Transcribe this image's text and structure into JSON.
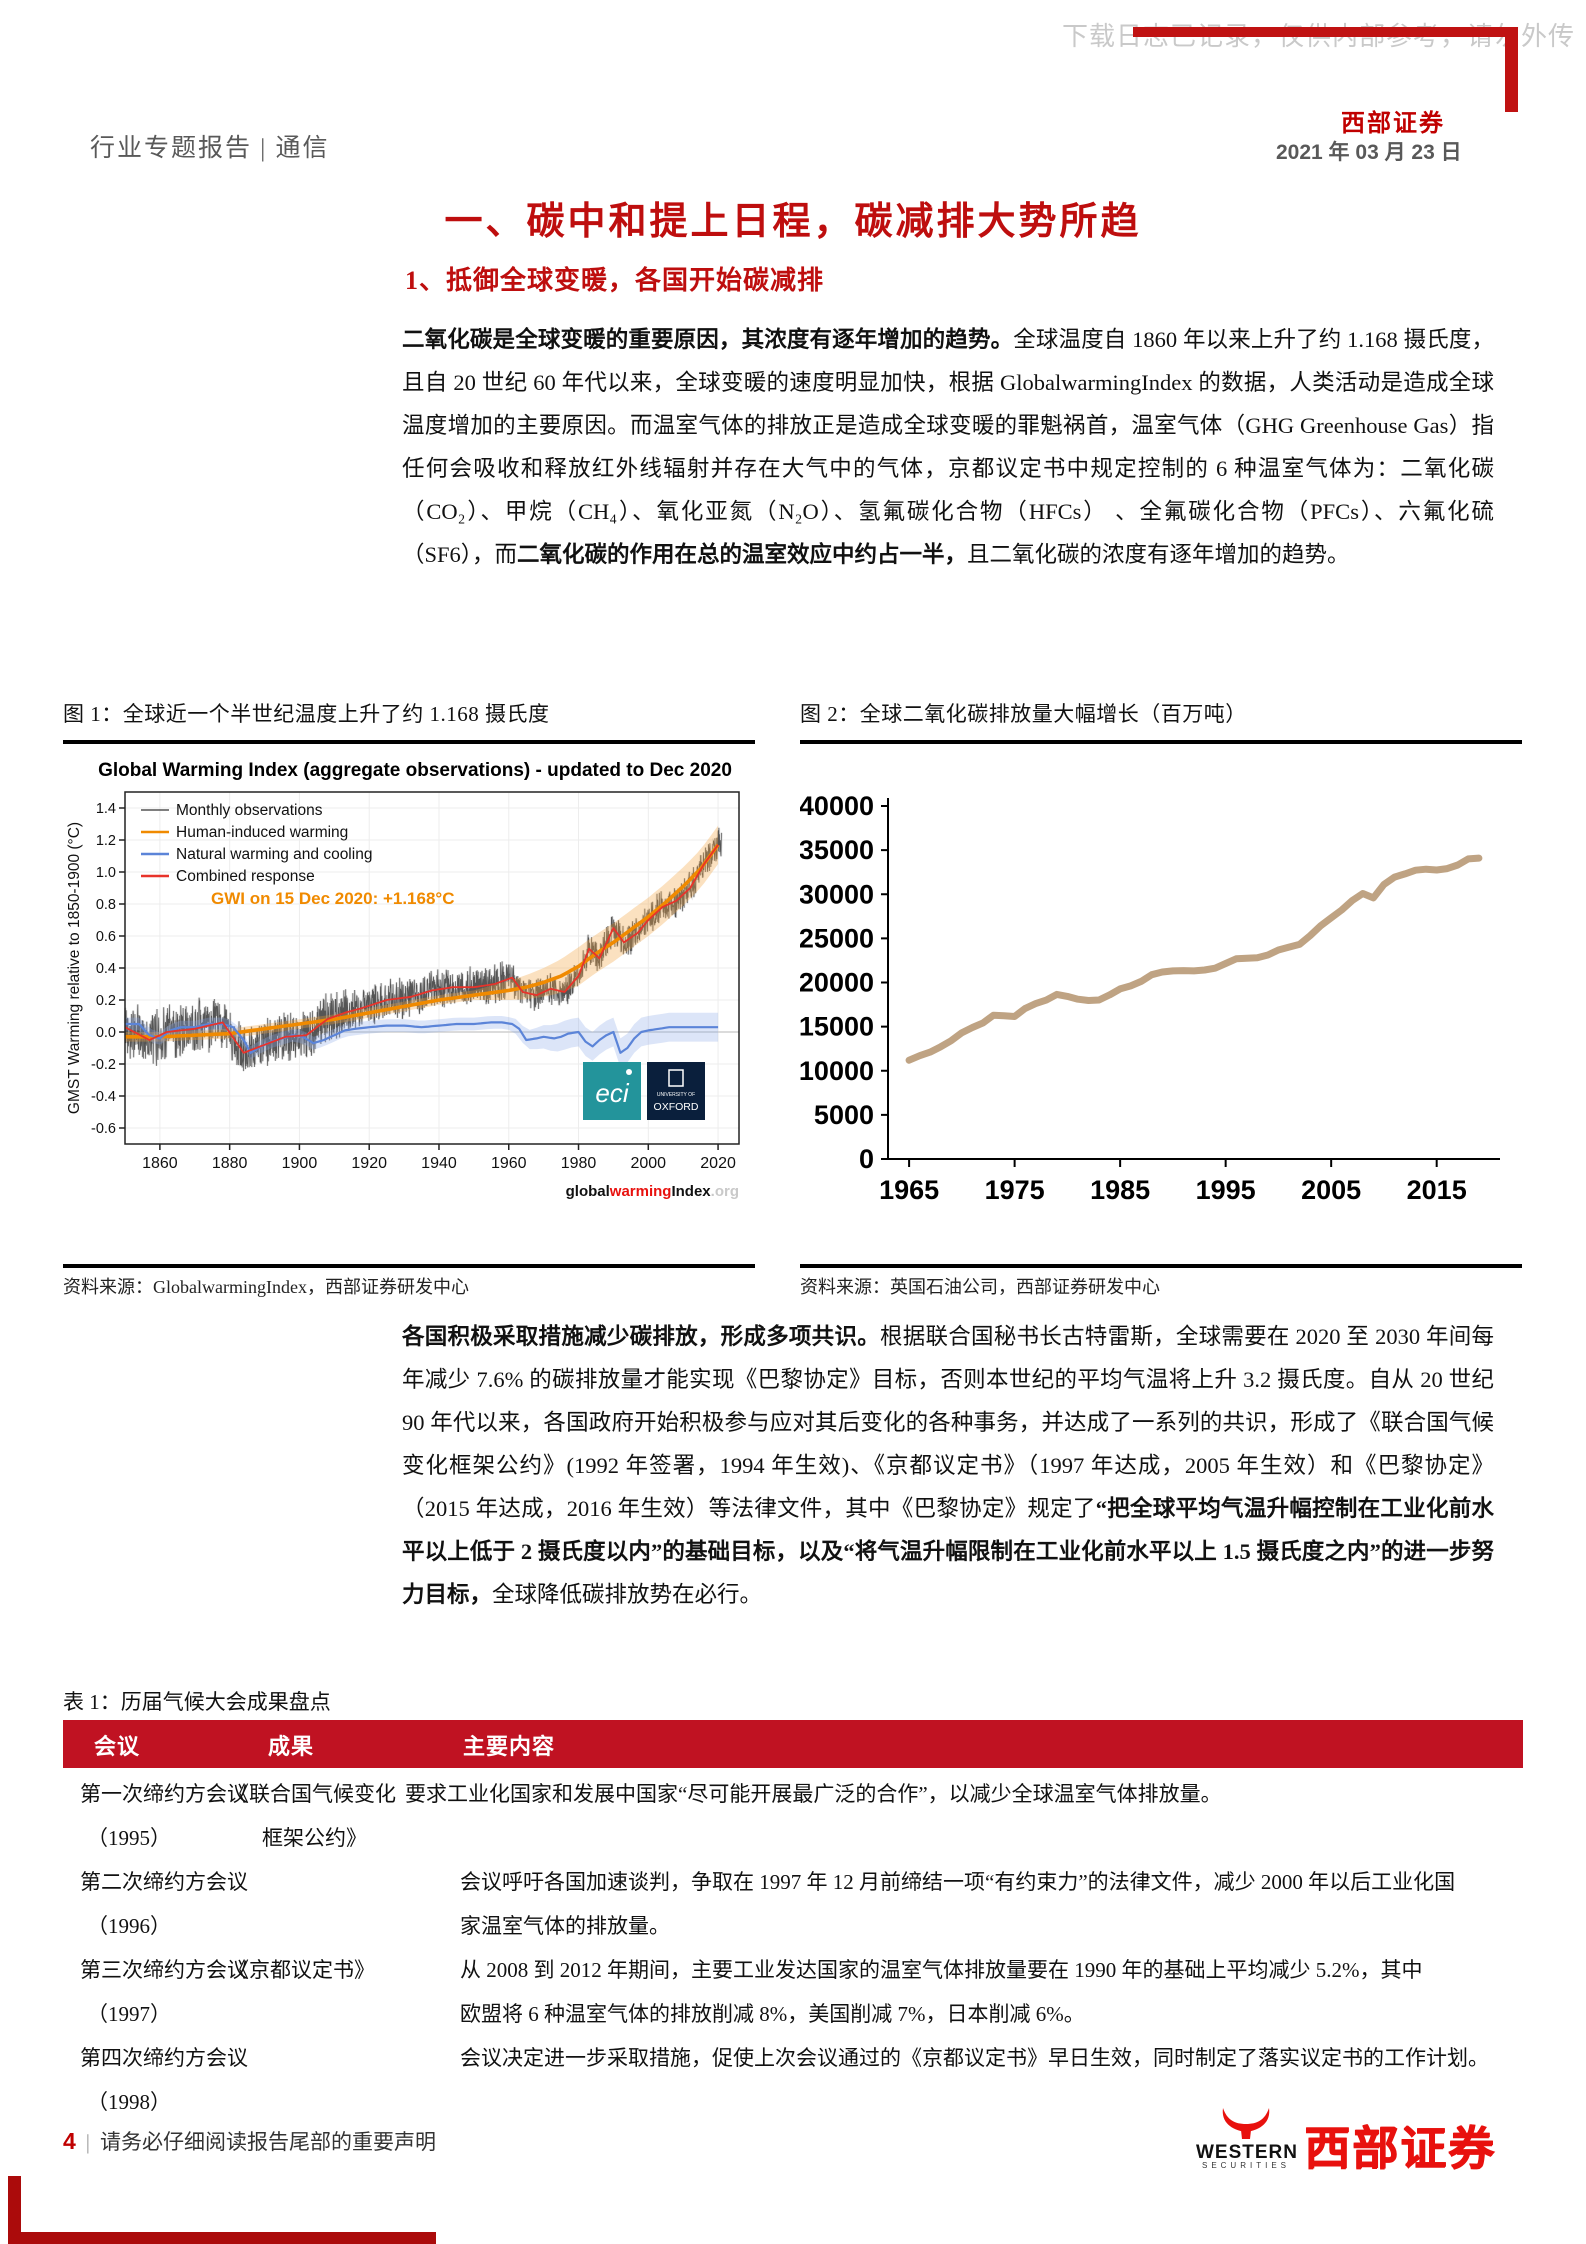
{
  "header": {
    "watermark": "下载日志已记录，仅供内部参考，请勿外传",
    "brand": "西部证券",
    "date": "2021 年 03 月 23 日",
    "doc_type": "行业专题报告 | 通信"
  },
  "headings": {
    "h1": "一、碳中和提上日程，碳减排大势所趋",
    "h2": "1、抵御全球变暖，各国开始碳减排"
  },
  "paragraphs": {
    "p1": [
      {
        "b": 1,
        "t": "二氧化碳是全球变暖的重要原因，其浓度有逐年增加的趋势。"
      },
      {
        "b": 0,
        "t": "全球温度自 1860 年以来上升了约 1.168 摄氏度，且自 20 世纪 60 年代以来，全球变暖的速度明显加快，根据 GlobalwarmingIndex 的数据，人类活动是造成全球温度增加的主要原因。而温室气体的排放正是造成全球变暖的罪魁祸首，温室气体（GHG Greenhouse Gas）指任何会吸收和释放红外线辐射并存在大气中的气体，京都议定书中规定控制的 6 种温室气体为：二氧化碳（CO₂）、甲烷（CH₄）、氧化亚氮（N₂O）、氢氟碳化合物（HFCs） 、全氟碳化合物（PFCs）、六氟化硫（SF6），而"
      },
      {
        "b": 1,
        "t": "二氧化碳的作用在总的温室效应中约占一半，"
      },
      {
        "b": 0,
        "t": "且二氧化碳的浓度有逐年增加的趋势。"
      }
    ],
    "p2": [
      {
        "b": 1,
        "t": "各国积极采取措施减少碳排放，形成多项共识。"
      },
      {
        "b": 0,
        "t": "根据联合国秘书长古特雷斯，全球需要在 2020 至 2030 年间每年减少 7.6% 的碳排放量才能实现《巴黎协定》目标，否则本世纪的平均气温将上升 3.2 摄氏度。自从 20 世纪 90 年代以来，各国政府开始积极参与应对其后变化的各种事务，并达成了一系列的共识，形成了《联合国气候变化框架公约》(1992 年签署，1994 年生效)、《京都议定书》（1997 年达成，2005 年生效）和《巴黎协定》（2015 年达成，2016 年生效）等法律文件，其中《巴黎协定》规定了"
      },
      {
        "b": 1,
        "t": "“把全球平均气温升幅控制在工业化前水平以上低于 2 摄氏度以内”的基础目标，以及“将气温升幅限制在工业化前水平以上 1.5 摄氏度之内”的进一步努力目标，"
      },
      {
        "b": 0,
        "t": "全球降低碳排放势在必行。"
      }
    ]
  },
  "figures": {
    "fig1_caption": "图 1：全球近一个半世纪温度上升了约 1.168 摄氏度",
    "fig1_source": "资料来源：GlobalwarmingIndex，西部证券研发中心",
    "fig2_caption": "图 2：全球二氧化碳排放量大幅增长（百万吨）",
    "fig2_source": "资料来源：英国石油公司，西部证券研发中心"
  },
  "chart_data": [
    {
      "type": "line",
      "title": "Global Warming Index (aggregate observations) - updated to Dec 2020",
      "ylabel": "GMST Warming relative to 1850-1900 (°C)",
      "annotation": "GWI on 15 Dec 2020: +1.168°C",
      "xlim": [
        1850,
        2026
      ],
      "ylim": [
        -0.7,
        1.5
      ],
      "yticks": [
        -0.6,
        -0.4,
        -0.2,
        0.0,
        0.2,
        0.4,
        0.6,
        0.8,
        1.0,
        1.2,
        1.4
      ],
      "xticks": [
        1860,
        1880,
        1900,
        1920,
        1940,
        1960,
        1980,
        2000,
        2020
      ],
      "legend": [
        "Monthly observations",
        "Human-induced warming",
        "Natural warming and cooling",
        "Combined response"
      ],
      "legend_colors": [
        "#555555",
        "#f08a00",
        "#5b84d8",
        "#e8332a"
      ],
      "series": [
        {
          "name": "Human-induced warming",
          "color": "#f08a00",
          "band_color": "#f2a23c",
          "points": [
            [
              1850,
              -0.03
            ],
            [
              1860,
              -0.03
            ],
            [
              1870,
              -0.02
            ],
            [
              1880,
              -0.01
            ],
            [
              1890,
              0.02
            ],
            [
              1900,
              0.05
            ],
            [
              1910,
              0.08
            ],
            [
              1920,
              0.12
            ],
            [
              1930,
              0.16
            ],
            [
              1940,
              0.2
            ],
            [
              1950,
              0.23
            ],
            [
              1960,
              0.26
            ],
            [
              1965,
              0.28
            ],
            [
              1970,
              0.31
            ],
            [
              1975,
              0.35
            ],
            [
              1980,
              0.41
            ],
            [
              1985,
              0.49
            ],
            [
              1990,
              0.56
            ],
            [
              1995,
              0.64
            ],
            [
              2000,
              0.72
            ],
            [
              2005,
              0.81
            ],
            [
              2010,
              0.91
            ],
            [
              2015,
              1.02
            ],
            [
              2020,
              1.17
            ]
          ]
        },
        {
          "name": "Natural warming and cooling",
          "color": "#5b84d8",
          "band_color": "#8aa8e8",
          "points": [
            [
              1850,
              0.05
            ],
            [
              1854,
              0.05
            ],
            [
              1857,
              -0.02
            ],
            [
              1860,
              -0.04
            ],
            [
              1863,
              0.01
            ],
            [
              1866,
              0.03
            ],
            [
              1870,
              0.03
            ],
            [
              1874,
              0.05
            ],
            [
              1878,
              0.05
            ],
            [
              1881,
              0.03
            ],
            [
              1884,
              -0.05
            ],
            [
              1886,
              -0.13
            ],
            [
              1889,
              -0.09
            ],
            [
              1892,
              -0.06
            ],
            [
              1895,
              -0.04
            ],
            [
              1898,
              -0.02
            ],
            [
              1901,
              -0.03
            ],
            [
              1904,
              -0.07
            ],
            [
              1907,
              -0.05
            ],
            [
              1910,
              -0.02
            ],
            [
              1913,
              0.01
            ],
            [
              1916,
              0.02
            ],
            [
              1920,
              0.03
            ],
            [
              1925,
              0.04
            ],
            [
              1930,
              0.04
            ],
            [
              1935,
              0.03
            ],
            [
              1940,
              0.04
            ],
            [
              1945,
              0.05
            ],
            [
              1950,
              0.05
            ],
            [
              1955,
              0.06
            ],
            [
              1958,
              0.06
            ],
            [
              1961,
              0.05
            ],
            [
              1963,
              0.02
            ],
            [
              1965,
              -0.05
            ],
            [
              1968,
              -0.04
            ],
            [
              1970,
              -0.03
            ],
            [
              1973,
              -0.04
            ],
            [
              1975,
              -0.03
            ],
            [
              1977,
              -0.01
            ],
            [
              1980,
              0.0
            ],
            [
              1982,
              -0.06
            ],
            [
              1984,
              -0.09
            ],
            [
              1986,
              -0.05
            ],
            [
              1988,
              -0.02
            ],
            [
              1990,
              0.0
            ],
            [
              1992,
              -0.13
            ],
            [
              1994,
              -0.1
            ],
            [
              1996,
              -0.04
            ],
            [
              1998,
              0.0
            ],
            [
              2000,
              0.01
            ],
            [
              2003,
              0.02
            ],
            [
              2006,
              0.03
            ],
            [
              2010,
              0.03
            ],
            [
              2014,
              0.03
            ],
            [
              2017,
              0.03
            ],
            [
              2020,
              0.03
            ]
          ]
        },
        {
          "name": "Combined response",
          "color": "#e8332a",
          "points": [
            [
              1850,
              0.03
            ],
            [
              1857,
              -0.05
            ],
            [
              1862,
              0.0
            ],
            [
              1870,
              0.02
            ],
            [
              1878,
              0.06
            ],
            [
              1884,
              -0.13
            ],
            [
              1890,
              -0.08
            ],
            [
              1896,
              -0.03
            ],
            [
              1902,
              -0.02
            ],
            [
              1908,
              0.08
            ],
            [
              1913,
              0.12
            ],
            [
              1918,
              0.15
            ],
            [
              1925,
              0.2
            ],
            [
              1932,
              0.22
            ],
            [
              1938,
              0.26
            ],
            [
              1944,
              0.28
            ],
            [
              1950,
              0.28
            ],
            [
              1956,
              0.3
            ],
            [
              1961,
              0.34
            ],
            [
              1964,
              0.25
            ],
            [
              1968,
              0.23
            ],
            [
              1972,
              0.27
            ],
            [
              1976,
              0.25
            ],
            [
              1980,
              0.35
            ],
            [
              1983,
              0.52
            ],
            [
              1986,
              0.46
            ],
            [
              1990,
              0.65
            ],
            [
              1993,
              0.56
            ],
            [
              1997,
              0.62
            ],
            [
              2000,
              0.7
            ],
            [
              2004,
              0.78
            ],
            [
              2008,
              0.82
            ],
            [
              2012,
              0.9
            ],
            [
              2016,
              1.05
            ],
            [
              2020,
              1.17
            ]
          ]
        },
        {
          "name": "Monthly observations",
          "color": "#4d4d4d",
          "derived": "combined_plus_noise",
          "noise": 0.12
        }
      ],
      "logos": [
        "eci",
        "OXFORD"
      ],
      "brand": {
        "global": "global",
        "warming": "warming",
        "index": "Index",
        "org": ".org"
      }
    },
    {
      "type": "line",
      "color": "#bfa383",
      "ylim": [
        0,
        40000
      ],
      "yticks": [
        0,
        5000,
        10000,
        15000,
        20000,
        25000,
        30000,
        35000,
        40000
      ],
      "xticks": [
        1965,
        1975,
        1985,
        1995,
        2005,
        2015
      ],
      "x_start": 1965,
      "x": [
        1965,
        1966,
        1967,
        1968,
        1969,
        1970,
        1971,
        1972,
        1973,
        1974,
        1975,
        1976,
        1977,
        1978,
        1979,
        1980,
        1981,
        1982,
        1983,
        1984,
        1985,
        1986,
        1987,
        1988,
        1989,
        1990,
        1991,
        1992,
        1993,
        1994,
        1995,
        1996,
        1997,
        1998,
        1999,
        2000,
        2001,
        2002,
        2003,
        2004,
        2005,
        2006,
        2007,
        2008,
        2009,
        2010,
        2011,
        2012,
        2013,
        2014,
        2015,
        2016,
        2017,
        2018,
        2019
      ],
      "values": [
        11190,
        11700,
        12110,
        12720,
        13420,
        14310,
        14900,
        15420,
        16290,
        16240,
        16150,
        17070,
        17610,
        18010,
        18650,
        18430,
        18110,
        17960,
        18020,
        18600,
        19280,
        19620,
        20130,
        20880,
        21190,
        21310,
        21350,
        21310,
        21420,
        21620,
        22150,
        22680,
        22750,
        22800,
        23120,
        23680,
        24010,
        24320,
        25300,
        26420,
        27330,
        28220,
        29290,
        30090,
        29590,
        31100,
        31940,
        32310,
        32730,
        32840,
        32750,
        32910,
        33310,
        34010,
        34100
      ]
    }
  ],
  "table": {
    "title": "表 1：历届气候大会成果盘点",
    "headers": [
      "会议",
      "成果",
      "主要内容"
    ],
    "rows": [
      {
        "meeting": "第一次缔约方会议",
        "year": "（1995）",
        "outcome": [
          "《联合国气候变化",
          "框架公约》"
        ],
        "content": [
          "要求工业化国家和发展中国家“尽可能开展最广泛的合作”，以减少全球温室气体排放量。"
        ],
        "content_x": 342
      },
      {
        "meeting": "第二次缔约方会议",
        "year": "（1996）",
        "outcome": [],
        "content": [
          "会议呼吁各国加速谈判，争取在 1997 年 12 月前缔结一项“有约束力”的法律文件，减少 2000 年以后工业化国",
          "家温室气体的排放量。"
        ],
        "content_x": 397
      },
      {
        "meeting": "第三次缔约方会议",
        "year": "（1997）",
        "outcome": [
          "《京都议定书》"
        ],
        "content": [
          "从 2008 到 2012 年期间，主要工业发达国家的温室气体排放量要在 1990 年的基础上平均减少 5.2%，其中",
          "欧盟将 6 种温室气体的排放削减 8%，美国削减 7%，日本削减 6%。"
        ],
        "content_x": 397
      },
      {
        "meeting": "第四次缔约方会议",
        "year": "（1998）",
        "outcome": [],
        "content": [
          "会议决定进一步采取措施，促使上次会议通过的《京都议定书》早日生效，同时制定了落实议定书的工作计划。"
        ],
        "content_x": 397
      }
    ]
  },
  "footer": {
    "page_number": "4",
    "disclaimer": "请务必仔细阅读报告尾部的重要声明",
    "logo_western": "WESTERN",
    "logo_securities": "SECURITIES",
    "logo_cn": "西部证券"
  },
  "colors": {
    "accent_red": "#be0e0e",
    "table_header_bg": "#c01222",
    "top_bar_red": "#c01212",
    "corner_bar_red": "#ab0b0b",
    "co2_line": "#bfa383"
  }
}
